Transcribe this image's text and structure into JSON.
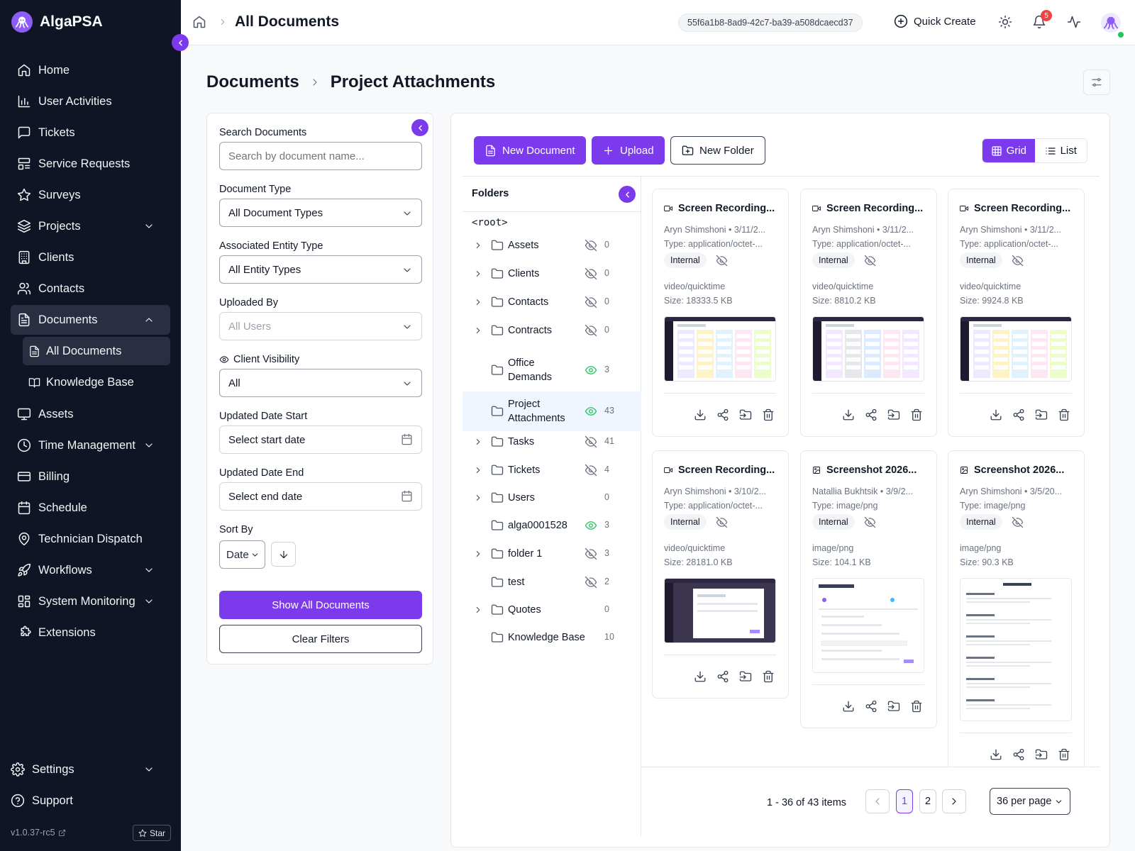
{
  "app": {
    "name": "AlgaPSA",
    "version": "v1.0.37-rc5",
    "star_label": "Star"
  },
  "sidebar": {
    "items": [
      {
        "label": "Home",
        "icon": "home-icon"
      },
      {
        "label": "User Activities",
        "icon": "bar-chart-icon"
      },
      {
        "label": "Tickets",
        "icon": "message-square-icon"
      },
      {
        "label": "Service Requests",
        "icon": "layout-list-icon"
      },
      {
        "label": "Surveys",
        "icon": "star-icon"
      },
      {
        "label": "Projects",
        "icon": "layers-icon"
      },
      {
        "label": "Clients",
        "icon": "building-icon"
      },
      {
        "label": "Contacts",
        "icon": "users-icon"
      },
      {
        "label": "Documents",
        "icon": "file-text-icon"
      },
      {
        "label": "Assets",
        "icon": "monitor-icon"
      },
      {
        "label": "Time Management",
        "icon": "clock-icon"
      },
      {
        "label": "Billing",
        "icon": "credit-card-icon"
      },
      {
        "label": "Schedule",
        "icon": "calendar-icon"
      },
      {
        "label": "Technician Dispatch",
        "icon": "map-pin-icon"
      },
      {
        "label": "Workflows",
        "icon": "rocket-icon"
      },
      {
        "label": "System Monitoring",
        "icon": "grid-icon"
      },
      {
        "label": "Extensions",
        "icon": "puzzle-icon"
      }
    ],
    "documents_sub": [
      {
        "label": "All Documents",
        "icon": "file-text-icon"
      },
      {
        "label": "Knowledge Base",
        "icon": "book-open-icon"
      }
    ],
    "bottom": [
      {
        "label": "Settings",
        "icon": "gear-icon"
      },
      {
        "label": "Support",
        "icon": "help-circle-icon"
      }
    ]
  },
  "header": {
    "title": "All Documents",
    "tenant_id": "55f6a1b8-8ad9-42c7-ba39-a508dcaecd37",
    "quick_create": "Quick Create",
    "notification_count": "5"
  },
  "breadcrumb": {
    "root": "Documents",
    "current": "Project Attachments"
  },
  "filters": {
    "search_label": "Search Documents",
    "search_placeholder": "Search by document name...",
    "doc_type_label": "Document Type",
    "doc_type_value": "All Document Types",
    "entity_label": "Associated Entity Type",
    "entity_value": "All Entity Types",
    "uploaded_by_label": "Uploaded By",
    "uploaded_by_value": "All Users",
    "visibility_label": "Client Visibility",
    "visibility_value": "All",
    "date_start_label": "Updated Date Start",
    "date_start_placeholder": "Select start date",
    "date_end_label": "Updated Date End",
    "date_end_placeholder": "Select end date",
    "sort_label": "Sort By",
    "sort_value": "Date",
    "show_all": "Show All Documents",
    "clear": "Clear Filters"
  },
  "toolbar": {
    "new_document": "New Document",
    "upload": "Upload",
    "new_folder": "New Folder",
    "grid": "Grid",
    "list": "List"
  },
  "folders": {
    "title": "Folders",
    "root": "<root>",
    "items": [
      {
        "name": "Assets",
        "count": "0",
        "visible": false,
        "expandable": true
      },
      {
        "name": "Clients",
        "count": "0",
        "visible": false,
        "expandable": true
      },
      {
        "name": "Contacts",
        "count": "0",
        "visible": false,
        "expandable": true
      },
      {
        "name": "Contracts",
        "count": "0",
        "visible": false,
        "expandable": true
      },
      {
        "name": "Office Demands",
        "count": "3",
        "visible": true,
        "expandable": false
      },
      {
        "name": "Project Attachments",
        "count": "43",
        "visible": true,
        "expandable": false,
        "selected": true
      },
      {
        "name": "Tasks",
        "count": "41",
        "visible": false,
        "expandable": true
      },
      {
        "name": "Tickets",
        "count": "4",
        "visible": false,
        "expandable": true
      },
      {
        "name": "Users",
        "count": "0",
        "visible": null,
        "expandable": true
      },
      {
        "name": "alga0001528",
        "count": "3",
        "visible": true,
        "expandable": false
      },
      {
        "name": "folder 1",
        "count": "3",
        "visible": false,
        "expandable": true
      },
      {
        "name": "test",
        "count": "2",
        "visible": false,
        "expandable": false
      },
      {
        "name": "Quotes",
        "count": "0",
        "visible": null,
        "expandable": true
      },
      {
        "name": "Knowledge Base",
        "count": "10",
        "visible": null,
        "expandable": false
      }
    ]
  },
  "documents": [
    {
      "title": "Screen Recording...",
      "meta": "Aryn Shimshoni • 3/11/2...",
      "type": "Type: application/octet-...",
      "badge": "Internal",
      "mime": "video/quicktime",
      "size": "Size: 18333.5 KB",
      "icon": "video-icon"
    },
    {
      "title": "Screen Recording...",
      "meta": "Aryn Shimshoni • 3/11/2...",
      "type": "Type: application/octet-...",
      "badge": "Internal",
      "mime": "video/quicktime",
      "size": "Size: 8810.2 KB",
      "icon": "video-icon"
    },
    {
      "title": "Screen Recording...",
      "meta": "Aryn Shimshoni • 3/11/2...",
      "type": "Type: application/octet-...",
      "badge": "Internal",
      "mime": "video/quicktime",
      "size": "Size: 9924.8 KB",
      "icon": "video-icon"
    },
    {
      "title": "Screen Recording...",
      "meta": "Aryn Shimshoni • 3/10/2...",
      "type": "Type: application/octet-...",
      "badge": "Internal",
      "mime": "video/quicktime",
      "size": "Size: 28181.0 KB",
      "icon": "video-icon"
    },
    {
      "title": "Screenshot 2026...",
      "meta": "Natallia Bukhtsik • 3/9/2...",
      "type": "Type: image/png",
      "badge": "Internal",
      "mime": "image/png",
      "size": "Size: 104.1 KB",
      "icon": "image-icon"
    },
    {
      "title": "Screenshot 2026...",
      "meta": "Aryn Shimshoni • 3/5/20...",
      "type": "Type: image/png",
      "badge": "Internal",
      "mime": "image/png",
      "size": "Size: 90.3 KB",
      "icon": "image-icon"
    }
  ],
  "pagination": {
    "info": "1 - 36 of 43 items",
    "pages": [
      "1",
      "2"
    ],
    "per_page": "36 per page"
  }
}
